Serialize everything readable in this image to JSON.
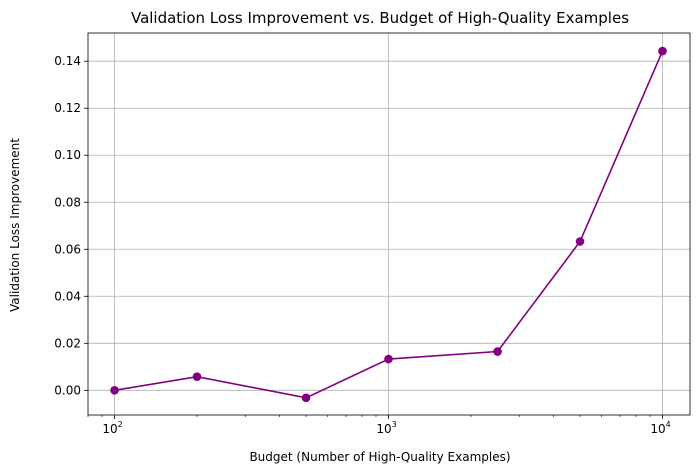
{
  "chart_data": {
    "type": "line",
    "title": "Validation Loss Improvement vs. Budget of High-Quality Examples",
    "xlabel": "Budget (Number of High-Quality Examples)",
    "ylabel": "Validation Loss Improvement",
    "xscale": "log",
    "xlim": [
      80,
      12600
    ],
    "ylim": [
      -0.0105,
      0.152
    ],
    "grid": true,
    "color": "#800080",
    "marker": "circle",
    "series": [
      {
        "x": [
          100,
          200,
          500,
          1000,
          2500,
          5000,
          10000
        ],
        "y": [
          0.0,
          0.0058,
          -0.0032,
          0.0133,
          0.0165,
          0.0633,
          0.1443
        ]
      }
    ],
    "x_ticks": [
      {
        "value": 100,
        "base": "10",
        "exp": "2"
      },
      {
        "value": 1000,
        "base": "10",
        "exp": "3"
      },
      {
        "value": 10000,
        "base": "10",
        "exp": "4"
      }
    ],
    "y_ticks": [
      {
        "value": 0.0,
        "label": "0.00"
      },
      {
        "value": 0.02,
        "label": "0.02"
      },
      {
        "value": 0.04,
        "label": "0.04"
      },
      {
        "value": 0.06,
        "label": "0.06"
      },
      {
        "value": 0.08,
        "label": "0.08"
      },
      {
        "value": 0.1,
        "label": "0.10"
      },
      {
        "value": 0.12,
        "label": "0.12"
      },
      {
        "value": 0.14,
        "label": "0.14"
      }
    ]
  }
}
